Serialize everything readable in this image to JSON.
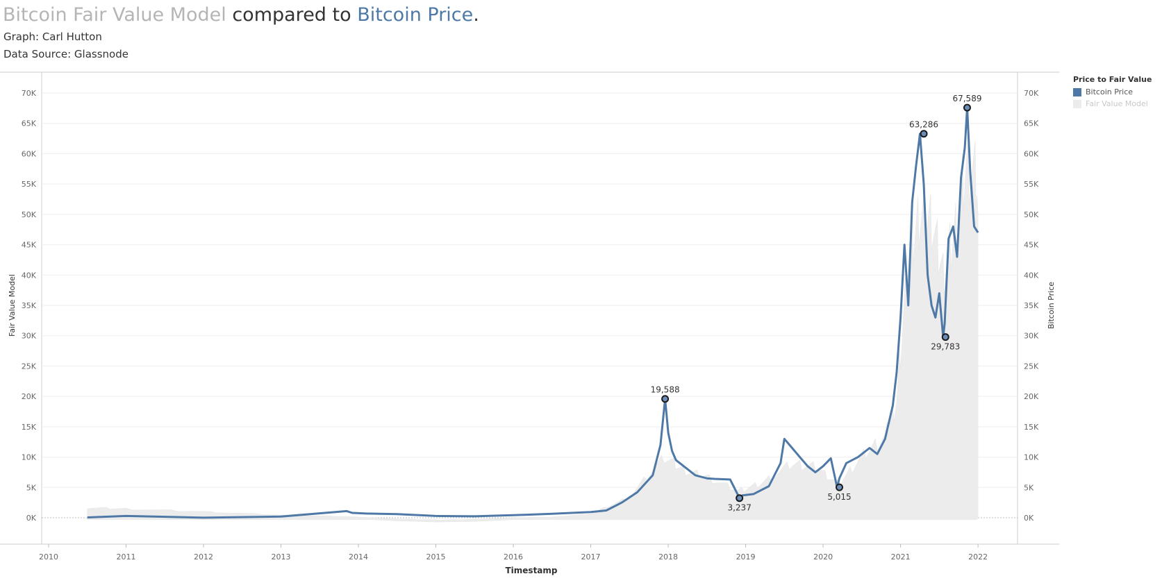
{
  "title": {
    "part1": "Bitcoin Fair Value Model",
    "part2": " compared to ",
    "part3": "Bitcoin Price",
    "part4": "."
  },
  "subtitle1": "Graph: Carl Hutton",
  "subtitle2": "Data Source: Glassnode",
  "colors": {
    "price": "#4e79a7",
    "fair_value": "#ececec",
    "title_gray": "#b5b5b5",
    "grid": "#eeeeee",
    "axis_text": "#666666",
    "marker_fill": "#6c8db8"
  },
  "legend": {
    "title": "Price to Fair Value",
    "items": [
      {
        "label": "Bitcoin Price",
        "color": "#4e79a7"
      },
      {
        "label": "Fair Value Model",
        "color": "#ececec"
      }
    ],
    "position": "top-right"
  },
  "chart_data": {
    "type": "line",
    "xlabel": "Timestamp",
    "ylabel_left": "Fair Value Model",
    "ylabel_right": "Bitcoin Price",
    "x_range": [
      2010.0,
      2022.6
    ],
    "x_ticks": [
      2010,
      2011,
      2012,
      2013,
      2014,
      2015,
      2016,
      2017,
      2018,
      2019,
      2020,
      2021,
      2022
    ],
    "y_left_range": [
      -4000,
      72000
    ],
    "y_left_ticks": [
      0,
      5000,
      10000,
      15000,
      20000,
      25000,
      30000,
      35000,
      40000,
      45000,
      50000,
      55000,
      60000,
      65000,
      70000
    ],
    "y_left_tick_labels": [
      "0K",
      "5K",
      "10K",
      "15K",
      "20K",
      "25K",
      "30K",
      "35K",
      "40K",
      "45K",
      "50K",
      "55K",
      "60K",
      "65K",
      "70K"
    ],
    "y_right_range": [
      -4000,
      72000
    ],
    "y_right_ticks": [
      0,
      5000,
      10000,
      15000,
      20000,
      25000,
      30000,
      35000,
      40000,
      45000,
      50000,
      55000,
      60000,
      65000,
      70000
    ],
    "y_right_tick_labels": [
      "0K",
      "5K",
      "10K",
      "15K",
      "20K",
      "25K",
      "30K",
      "35K",
      "40K",
      "45K",
      "50K",
      "55K",
      "60K",
      "65K",
      "70K"
    ],
    "grid": true,
    "series": [
      {
        "name": "Bitcoin Price",
        "x": [
          2010.5,
          2011.0,
          2012.0,
          2013.0,
          2013.85,
          2013.92,
          2014.1,
          2014.5,
          2015.0,
          2015.5,
          2016.0,
          2016.5,
          2017.0,
          2017.2,
          2017.4,
          2017.6,
          2017.8,
          2017.9,
          2017.96,
          2018.0,
          2018.05,
          2018.1,
          2018.2,
          2018.35,
          2018.5,
          2018.6,
          2018.8,
          2018.92,
          2018.96,
          2019.1,
          2019.3,
          2019.45,
          2019.5,
          2019.6,
          2019.7,
          2019.8,
          2019.9,
          2020.0,
          2020.1,
          2020.18,
          2020.21,
          2020.3,
          2020.45,
          2020.6,
          2020.7,
          2020.8,
          2020.9,
          2020.95,
          2021.0,
          2021.05,
          2021.1,
          2021.15,
          2021.2,
          2021.25,
          2021.3,
          2021.35,
          2021.4,
          2021.45,
          2021.5,
          2021.55,
          2021.57,
          2021.62,
          2021.68,
          2021.73,
          2021.78,
          2021.83,
          2021.86,
          2021.9,
          2021.95,
          2022.0
        ],
        "values": [
          60,
          300,
          8,
          200,
          1100,
          800,
          700,
          600,
          300,
          240,
          420,
          650,
          950,
          1200,
          2500,
          4200,
          7000,
          12000,
          19588,
          14000,
          11000,
          9500,
          8500,
          7000,
          6500,
          6400,
          6300,
          3237,
          3700,
          3900,
          5200,
          9000,
          13000,
          11500,
          10000,
          8500,
          7500,
          8500,
          9800,
          5015,
          6500,
          9000,
          10000,
          11500,
          10500,
          13000,
          18500,
          24000,
          33000,
          45000,
          35000,
          52000,
          58000,
          63286,
          55000,
          40000,
          35000,
          33000,
          37000,
          29783,
          32000,
          46000,
          48000,
          43000,
          56000,
          61000,
          67589,
          57000,
          48000,
          47000
        ],
        "color": "#4e79a7"
      },
      {
        "name": "Fair Value Model",
        "x": [
          2010.5,
          2011.0,
          2012.0,
          2013.0,
          2013.8,
          2014.0,
          2014.5,
          2015.0,
          2015.5,
          2016.0,
          2016.5,
          2017.0,
          2017.5,
          2017.95,
          2018.2,
          2018.5,
          2018.9,
          2019.2,
          2019.6,
          2019.9,
          2020.2,
          2020.5,
          2020.8,
          2020.95,
          2021.1,
          2021.25,
          2021.4,
          2021.55,
          2021.7,
          2021.85,
          2022.0
        ],
        "values": [
          1500,
          1300,
          900,
          400,
          200,
          100,
          -200,
          -400,
          -300,
          0,
          100,
          600,
          3000,
          9000,
          7000,
          6000,
          4000,
          5000,
          8000,
          7500,
          5000,
          9000,
          12000,
          17000,
          38000,
          45000,
          44000,
          36000,
          42000,
          52000,
          50000
        ],
        "color": "#ececec"
      }
    ],
    "annotations": [
      {
        "x": 2017.96,
        "y": 19588,
        "label": "19,588",
        "pos": "above"
      },
      {
        "x": 2018.92,
        "y": 3237,
        "label": "3,237",
        "pos": "below"
      },
      {
        "x": 2020.21,
        "y": 5015,
        "label": "5,015",
        "pos": "below"
      },
      {
        "x": 2021.3,
        "y": 63286,
        "label": "63,286",
        "pos": "above"
      },
      {
        "x": 2021.58,
        "y": 29783,
        "label": "29,783",
        "pos": "below"
      },
      {
        "x": 2021.86,
        "y": 67589,
        "label": "67,589",
        "pos": "above"
      }
    ]
  }
}
